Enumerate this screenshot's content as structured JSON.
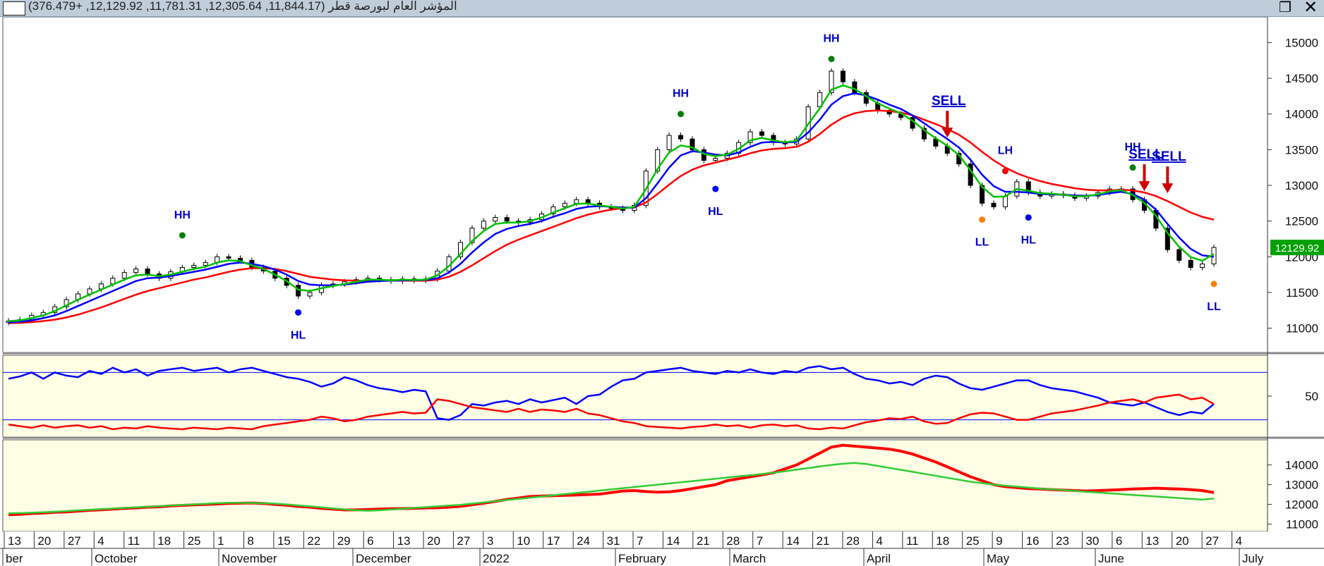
{
  "window": {
    "title": "المؤشر العام لبورصة قطر (11,844.17, 12,305.64, 11,781.31, 12,129.92, +376.479)",
    "restore_label": "❐",
    "close_label": "✕"
  },
  "chart_data": [
    {
      "type": "candlestick",
      "panel": "price",
      "title": "",
      "ylim": [
        10700,
        15300
      ],
      "y_ticks": [
        11000,
        11500,
        12000,
        12500,
        13000,
        13500,
        14000,
        14500,
        15000
      ],
      "last_value_label": "12129.92",
      "close": [
        11100,
        11120,
        11180,
        11220,
        11300,
        11400,
        11480,
        11550,
        11620,
        11700,
        11780,
        11830,
        11760,
        11700,
        11790,
        11850,
        11880,
        11920,
        12000,
        11980,
        11950,
        11850,
        11800,
        11700,
        11600,
        11450,
        11500,
        11600,
        11620,
        11650,
        11680,
        11700,
        11680,
        11660,
        11690,
        11670,
        11690,
        11800,
        12000,
        12200,
        12400,
        12500,
        12550,
        12500,
        12480,
        12520,
        12600,
        12700,
        12750,
        12800,
        12750,
        12700,
        12680,
        12650,
        12720,
        13200,
        13500,
        13700,
        13650,
        13500,
        13350,
        13380,
        13450,
        13600,
        13750,
        13700,
        13600,
        13580,
        13650,
        14100,
        14300,
        14600,
        14450,
        14300,
        14150,
        14050,
        14000,
        13950,
        13800,
        13650,
        13550,
        13450,
        13300,
        13000,
        12750,
        12700,
        12850,
        13050,
        12900,
        12850,
        12880,
        12860,
        12820,
        12850,
        12900,
        12950,
        12950,
        12800,
        12650,
        12400,
        12100,
        11950,
        11850,
        11900,
        12130
      ],
      "series": [
        {
          "name": "",
          "color": "#00c000",
          "values": [
            11100,
            11110,
            11140,
            11180,
            11240,
            11320,
            11400,
            11470,
            11540,
            11610,
            11680,
            11740,
            11750,
            11730,
            11750,
            11790,
            11830,
            11860,
            11920,
            11950,
            11940,
            11880,
            11830,
            11750,
            11660,
            11540,
            11520,
            11560,
            11590,
            11620,
            11650,
            11680,
            11680,
            11670,
            11680,
            11675,
            11680,
            11740,
            11870,
            12040,
            12220,
            12360,
            12460,
            12480,
            12480,
            12500,
            12550,
            12620,
            12680,
            12740,
            12745,
            12720,
            12700,
            12675,
            12700,
            12950,
            13230,
            13460,
            13560,
            13530,
            13440,
            13410,
            13430,
            13510,
            13630,
            13665,
            13630,
            13605,
            13625,
            13860,
            14080,
            14340,
            14400,
            14350,
            14250,
            14150,
            14075,
            14010,
            13905,
            13775,
            13660,
            13555,
            13425,
            13210,
            12980,
            12840,
            12845,
            12950,
            12925,
            12890,
            12885,
            12870,
            12845,
            12848,
            12875,
            12915,
            12935,
            12865,
            12755,
            12575,
            12335,
            12140,
            11995,
            11945,
            12040
          ]
        },
        {
          "name": "",
          "color": "#0000ff",
          "values": [
            11080,
            11090,
            11110,
            11140,
            11180,
            11240,
            11310,
            11380,
            11450,
            11520,
            11590,
            11660,
            11700,
            11710,
            11730,
            11760,
            11790,
            11820,
            11860,
            11900,
            11920,
            11900,
            11870,
            11820,
            11750,
            11660,
            11610,
            11600,
            11600,
            11610,
            11630,
            11650,
            11660,
            11665,
            11670,
            11672,
            11675,
            11700,
            11780,
            11900,
            12060,
            12200,
            12320,
            12390,
            12430,
            12460,
            12500,
            12560,
            12610,
            12670,
            12700,
            12710,
            12700,
            12690,
            12690,
            12820,
            13030,
            13250,
            13420,
            13480,
            13460,
            13430,
            13420,
            13460,
            13540,
            13600,
            13610,
            13600,
            13610,
            13740,
            13920,
            14130,
            14250,
            14290,
            14260,
            14200,
            14130,
            14070,
            13980,
            13870,
            13760,
            13650,
            13530,
            13360,
            13150,
            12990,
            12910,
            12910,
            12900,
            12880,
            12875,
            12870,
            12860,
            12855,
            12865,
            12890,
            12910,
            12880,
            12800,
            12660,
            12460,
            12270,
            12110,
            12020,
            12000
          ]
        },
        {
          "name": "",
          "color": "#ff0000",
          "values": [
            11070,
            11075,
            11085,
            11100,
            11120,
            11150,
            11190,
            11240,
            11290,
            11350,
            11410,
            11470,
            11520,
            11560,
            11600,
            11640,
            11680,
            11710,
            11750,
            11790,
            11820,
            11840,
            11840,
            11830,
            11800,
            11760,
            11720,
            11700,
            11680,
            11670,
            11665,
            11665,
            11665,
            11665,
            11665,
            11665,
            11665,
            11680,
            11720,
            11790,
            11880,
            11980,
            12080,
            12170,
            12240,
            12300,
            12360,
            12420,
            12480,
            12540,
            12590,
            12630,
            12660,
            12680,
            12690,
            12760,
            12880,
            13010,
            13130,
            13220,
            13280,
            13320,
            13360,
            13400,
            13450,
            13490,
            13510,
            13520,
            13540,
            13610,
            13720,
            13850,
            13950,
            14010,
            14040,
            14050,
            14040,
            14020,
            13980,
            13920,
            13860,
            13790,
            13710,
            13600,
            13470,
            13350,
            13250,
            13170,
            13110,
            13060,
            13020,
            12990,
            12960,
            12940,
            12930,
            12930,
            12940,
            12930,
            12900,
            12850,
            12780,
            12700,
            12620,
            12560,
            12520
          ]
        }
      ],
      "annotations": [
        {
          "text": "HH",
          "index": 15,
          "value": 12300,
          "dot_color": "#008000",
          "label_color": "#0000cc"
        },
        {
          "text": "HL",
          "index": 25,
          "value": 11220,
          "dot_color": "#0000ff",
          "label_color": "#0000cc"
        },
        {
          "text": "HH",
          "index": 58,
          "value": 14000,
          "dot_color": "#008000",
          "label_color": "#0000cc"
        },
        {
          "text": "HL",
          "index": 61,
          "value": 12950,
          "dot_color": "#0000ff",
          "label_color": "#0000cc"
        },
        {
          "text": "HH",
          "index": 71,
          "value": 14770,
          "dot_color": "#008000",
          "label_color": "#0000cc"
        },
        {
          "text": "LL",
          "index": 84,
          "value": 12520,
          "dot_color": "#ff8000",
          "label_color": "#0000cc"
        },
        {
          "text": "LH",
          "index": 86,
          "value": 13200,
          "dot_color": "#ff0000",
          "label_color": "#0000cc"
        },
        {
          "text": "HL",
          "index": 88,
          "value": 12550,
          "dot_color": "#0000ff",
          "label_color": "#0000cc"
        },
        {
          "text": "HH",
          "index": 97,
          "value": 13250,
          "dot_color": "#008000",
          "label_color": "#0000cc"
        },
        {
          "text": "LL",
          "index": 104,
          "value": 11620,
          "dot_color": "#ff8000",
          "label_color": "#0000cc"
        }
      ],
      "signals": [
        {
          "text": "SELL",
          "index": 81,
          "value": 13650
        },
        {
          "text": "SELL",
          "index": 98,
          "value": 12900
        },
        {
          "text": "SELL",
          "index": 100,
          "value": 12870
        }
      ]
    },
    {
      "type": "line",
      "panel": "oscillator",
      "ylim": [
        0,
        100
      ],
      "y_ticks": [
        50
      ],
      "levels": [
        80,
        20
      ],
      "series": [
        {
          "name": "",
          "color": "#0000ff",
          "values": [
            72,
            75,
            80,
            72,
            80,
            76,
            74,
            82,
            78,
            86,
            80,
            84,
            76,
            82,
            84,
            86,
            82,
            84,
            86,
            80,
            84,
            86,
            82,
            78,
            74,
            72,
            68,
            62,
            66,
            74,
            70,
            64,
            60,
            58,
            55,
            58,
            56,
            22,
            20,
            26,
            40,
            38,
            42,
            44,
            40,
            46,
            42,
            45,
            48,
            40,
            50,
            52,
            62,
            70,
            72,
            80,
            82,
            84,
            86,
            82,
            80,
            78,
            82,
            80,
            84,
            80,
            78,
            82,
            80,
            86,
            88,
            84,
            86,
            78,
            72,
            70,
            66,
            68,
            64,
            72,
            76,
            74,
            66,
            60,
            58,
            62,
            66,
            70,
            70,
            64,
            60,
            58,
            56,
            52,
            48,
            42,
            40,
            38,
            42,
            36,
            30,
            26,
            30,
            28,
            40
          ]
        },
        {
          "name": "",
          "color": "#ff0000",
          "values": [
            14,
            12,
            10,
            13,
            10,
            12,
            13,
            10,
            12,
            8,
            10,
            9,
            12,
            10,
            9,
            8,
            10,
            9,
            8,
            10,
            9,
            8,
            12,
            14,
            16,
            18,
            20,
            24,
            22,
            18,
            20,
            24,
            26,
            28,
            30,
            28,
            29,
            46,
            44,
            40,
            36,
            34,
            32,
            30,
            34,
            30,
            33,
            32,
            30,
            34,
            28,
            26,
            22,
            18,
            16,
            12,
            11,
            10,
            9,
            11,
            12,
            14,
            12,
            13,
            10,
            13,
            14,
            12,
            13,
            9,
            8,
            10,
            9,
            13,
            17,
            19,
            22,
            21,
            24,
            18,
            15,
            16,
            22,
            27,
            29,
            28,
            24,
            20,
            20,
            24,
            28,
            30,
            32,
            35,
            38,
            42,
            44,
            46,
            42,
            48,
            50,
            52,
            46,
            48,
            40
          ]
        }
      ]
    },
    {
      "type": "line",
      "panel": "lower",
      "ylim": [
        10700,
        15200
      ],
      "y_ticks": [
        11000,
        12000,
        13000,
        14000
      ],
      "series": [
        {
          "name": "",
          "color": "#ff0000",
          "values": [
            11480,
            11500,
            11540,
            11560,
            11600,
            11620,
            11660,
            11700,
            11730,
            11760,
            11800,
            11820,
            11860,
            11880,
            11920,
            11950,
            11980,
            12000,
            12020,
            12050,
            12060,
            12070,
            12050,
            12000,
            11960,
            11900,
            11860,
            11800,
            11760,
            11720,
            11720,
            11740,
            11760,
            11780,
            11790,
            11800,
            11820,
            11830,
            11860,
            11900,
            11980,
            12060,
            12150,
            12250,
            12320,
            12400,
            12420,
            12440,
            12460,
            12480,
            12500,
            12520,
            12600,
            12680,
            12700,
            12650,
            12620,
            12640,
            12700,
            12800,
            12900,
            13000,
            13200,
            13300,
            13400,
            13500,
            13600,
            13800,
            14000,
            14300,
            14600,
            14900,
            15000,
            14950,
            14900,
            14850,
            14800,
            14700,
            14550,
            14350,
            14150,
            13900,
            13650,
            13400,
            13200,
            13000,
            12900,
            12850,
            12800,
            12780,
            12750,
            12720,
            12700,
            12680,
            12700,
            12720,
            12750,
            12780,
            12800,
            12820,
            12800,
            12780,
            12750,
            12700,
            12600
          ]
        },
        {
          "name": "",
          "color": "#33cc33",
          "values": [
            11550,
            11560,
            11580,
            11600,
            11630,
            11660,
            11700,
            11730,
            11760,
            11790,
            11820,
            11850,
            11880,
            11910,
            11940,
            11970,
            12000,
            12030,
            12060,
            12080,
            12080,
            12070,
            12060,
            12040,
            12000,
            11950,
            11900,
            11850,
            11800,
            11750,
            11700,
            11680,
            11700,
            11740,
            11780,
            11820,
            11860,
            11900,
            11940,
            11980,
            12040,
            12100,
            12160,
            12220,
            12280,
            12340,
            12400,
            12460,
            12520,
            12580,
            12640,
            12700,
            12760,
            12820,
            12880,
            12940,
            13000,
            13060,
            13120,
            13180,
            13240,
            13300,
            13360,
            13420,
            13480,
            13540,
            13600,
            13680,
            13760,
            13840,
            13920,
            14000,
            14060,
            14100,
            14050,
            13950,
            13850,
            13750,
            13650,
            13550,
            13450,
            13350,
            13250,
            13150,
            13080,
            13000,
            12950,
            12900,
            12850,
            12800,
            12760,
            12720,
            12680,
            12640,
            12600,
            12560,
            12520,
            12480,
            12440,
            12400,
            12360,
            12320,
            12280,
            12240,
            12300
          ]
        }
      ]
    }
  ],
  "x_axis": {
    "day_ticks": [
      "13",
      "20",
      "27",
      "4",
      "11",
      "18",
      "25",
      "1",
      "8",
      "15",
      "22",
      "29",
      "6",
      "13",
      "20",
      "27",
      "3",
      "10",
      "17",
      "24",
      "31",
      "7",
      "14",
      "21",
      "28",
      "7",
      "14",
      "21",
      "28",
      "4",
      "11",
      "18",
      "25",
      "9",
      "16",
      "23",
      "30",
      "6",
      "13",
      "20",
      "27",
      "4"
    ],
    "month_labels": [
      "ber",
      "October",
      "November",
      "December",
      "2022",
      "February",
      "March",
      "April",
      "May",
      "June",
      "July"
    ]
  }
}
